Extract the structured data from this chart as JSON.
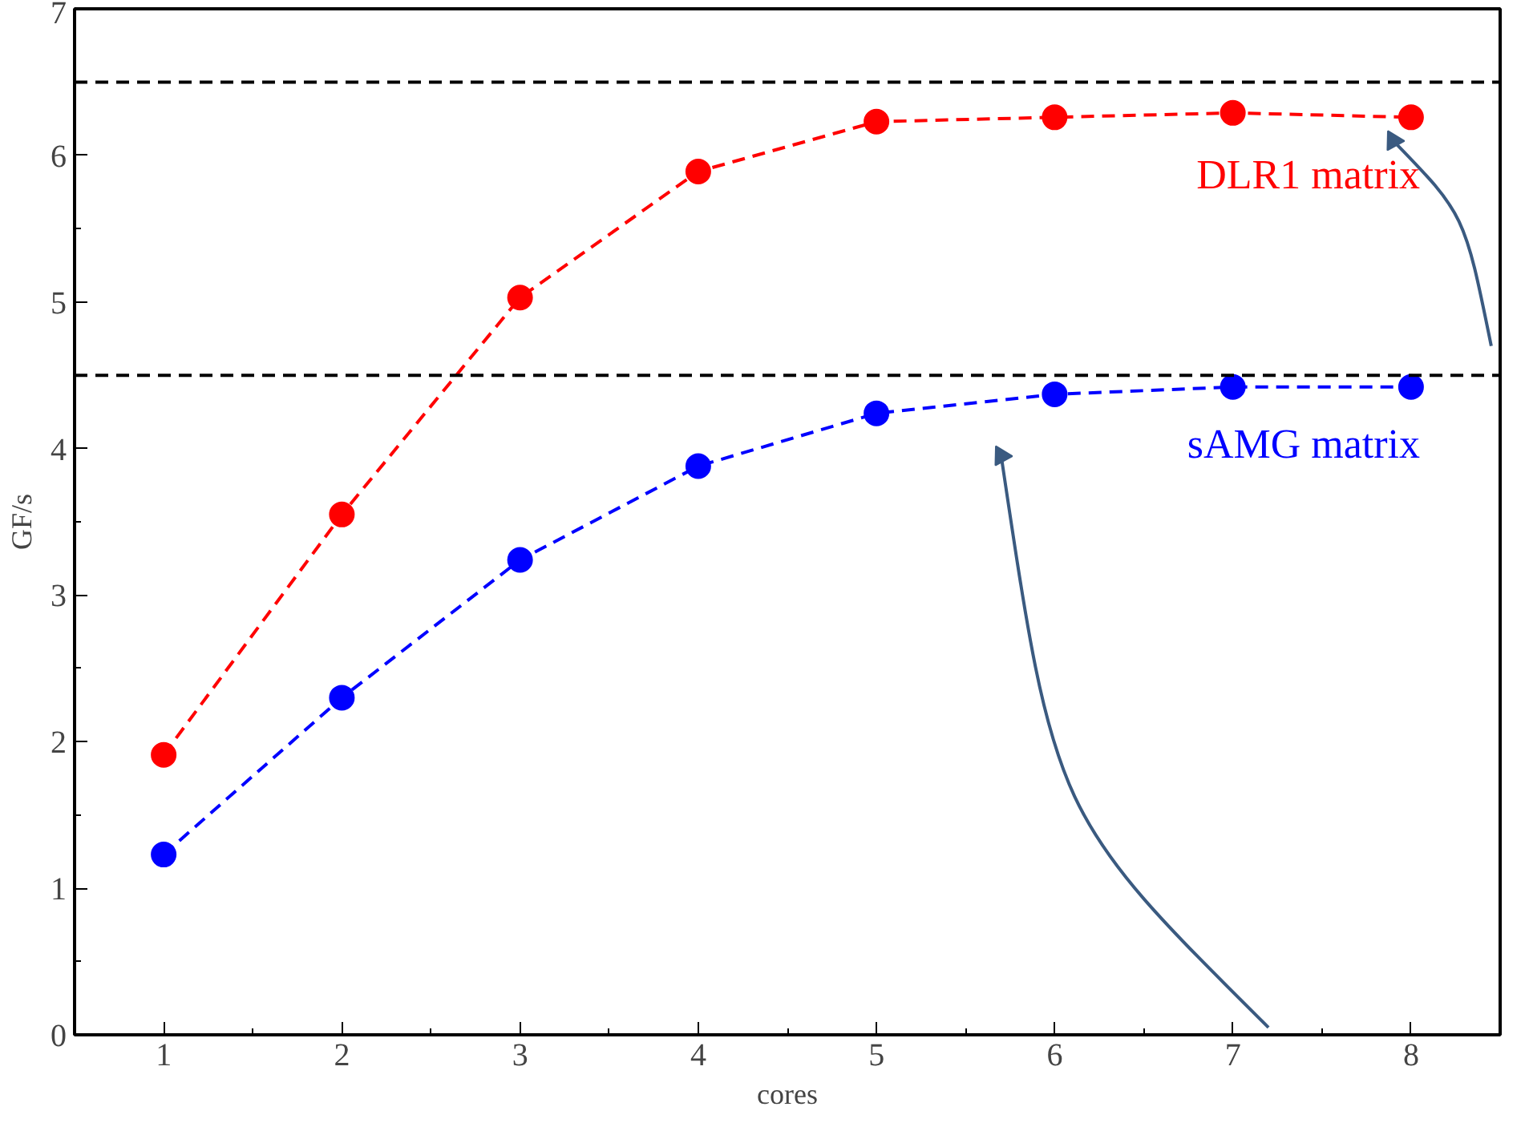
{
  "chart_data": {
    "type": "line",
    "xlabel": "cores",
    "ylabel": "GF/s",
    "x": [
      1,
      2,
      3,
      4,
      5,
      6,
      7,
      8
    ],
    "series": [
      {
        "name": "DLR1 matrix",
        "color": "#ff0000",
        "values": [
          1.91,
          3.55,
          5.03,
          5.89,
          6.23,
          6.26,
          6.29,
          6.26
        ]
      },
      {
        "name": "sAMG matrix",
        "color": "#0000ff",
        "values": [
          1.23,
          2.3,
          3.24,
          3.88,
          4.24,
          4.37,
          4.42,
          4.42
        ]
      }
    ],
    "xlim": [
      0.5,
      8.5
    ],
    "ylim": [
      0,
      7
    ],
    "xticks": [
      1,
      2,
      3,
      4,
      5,
      6,
      7,
      8
    ],
    "yticks": [
      0,
      1,
      2,
      3,
      4,
      5,
      6,
      7
    ],
    "ref_lines": [
      {
        "axis": "y",
        "value": 6.5,
        "label": null,
        "color": "#000000",
        "line_style": "dashed"
      },
      {
        "axis": "y",
        "value": 4.5,
        "label": null,
        "color": "#000000",
        "line_style": "dashed"
      }
    ],
    "marker": "circle",
    "line_style": "dashed",
    "grid": false
  }
}
